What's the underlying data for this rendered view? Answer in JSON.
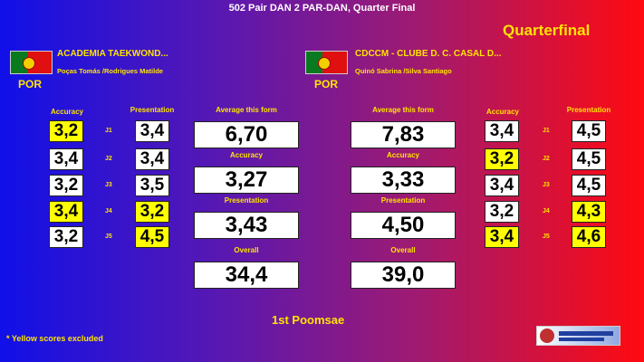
{
  "header": {
    "title": "502  Pair DAN 2 PAR-DAN, Quarter Final",
    "round": "Quarterfinal"
  },
  "columns": {
    "accuracy": "Accuracy",
    "presentation": "Presentation"
  },
  "judges": [
    "J1",
    "J2",
    "J3",
    "J4",
    "J5"
  ],
  "teams": [
    {
      "name": "ACADEMIA  TAEKWOND...",
      "members": "Poças Tomás /Rodrigues Matilde",
      "country": "POR",
      "accuracy": [
        {
          "score": "3,2",
          "excluded": true
        },
        {
          "score": "3,4",
          "excluded": false
        },
        {
          "score": "3,2",
          "excluded": false
        },
        {
          "score": "3,4",
          "excluded": true
        },
        {
          "score": "3,2",
          "excluded": false
        }
      ],
      "presentation": [
        {
          "score": "3,4",
          "excluded": false
        },
        {
          "score": "3,4",
          "excluded": false
        },
        {
          "score": "3,5",
          "excluded": false
        },
        {
          "score": "3,2",
          "excluded": true
        },
        {
          "score": "4,5",
          "excluded": true
        }
      ],
      "summary": [
        {
          "label": "Average this form",
          "score": "6,70"
        },
        {
          "label": "Accuracy",
          "score": "3,27"
        },
        {
          "label": "Presentation",
          "score": "3,43"
        },
        {
          "label": "Overall",
          "score": "34,4"
        }
      ]
    },
    {
      "name": "CDCCM - CLUBE D. C. CASAL D...",
      "members": "Quinó Sabrina /Silva Santiago",
      "country": "POR",
      "accuracy": [
        {
          "score": "3,4",
          "excluded": false
        },
        {
          "score": "3,2",
          "excluded": true
        },
        {
          "score": "3,4",
          "excluded": false
        },
        {
          "score": "3,2",
          "excluded": false
        },
        {
          "score": "3,4",
          "excluded": true
        }
      ],
      "presentation": [
        {
          "score": "4,5",
          "excluded": false
        },
        {
          "score": "4,5",
          "excluded": false
        },
        {
          "score": "4,5",
          "excluded": false
        },
        {
          "score": "4,3",
          "excluded": true
        },
        {
          "score": "4,6",
          "excluded": true
        }
      ],
      "summary": [
        {
          "label": "Average this form",
          "score": "7,83"
        },
        {
          "label": "Accuracy",
          "score": "3,33"
        },
        {
          "label": "Presentation",
          "score": "4,50"
        },
        {
          "label": "Overall",
          "score": "39,0"
        }
      ]
    }
  ],
  "footer": {
    "form": "1st Poomsae",
    "note": "* Yellow scores excluded"
  }
}
